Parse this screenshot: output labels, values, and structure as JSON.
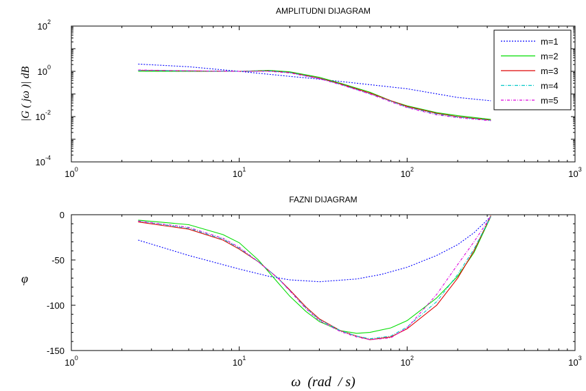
{
  "chart_data": [
    {
      "type": "line",
      "title": "AMPLITUDNI DIJAGRAM",
      "ylabel": "|G ( jω )| dB",
      "xlabel": "",
      "xscale": "log",
      "yscale": "log",
      "xlim": [
        1,
        1000
      ],
      "ylim": [
        0.0001,
        100
      ],
      "x_ticks": [
        {
          "base": "10",
          "exp": "0",
          "value": 1
        },
        {
          "base": "10",
          "exp": "1",
          "value": 10
        },
        {
          "base": "10",
          "exp": "2",
          "value": 100
        },
        {
          "base": "10",
          "exp": "3",
          "value": 1000
        }
      ],
      "y_ticks": [
        {
          "base": "10",
          "exp": "2",
          "value": 100
        },
        {
          "base": "10",
          "exp": "0",
          "value": 1
        },
        {
          "base": "10",
          "exp": "-2",
          "value": 0.01
        },
        {
          "base": "10",
          "exp": "-4",
          "value": 0.0001
        }
      ],
      "legend_position": "top-right",
      "series": [
        {
          "name": "m=1",
          "color": "#0000ff",
          "dash": "2,2",
          "points": [
            [
              2.5,
              2.1
            ],
            [
              5,
              1.6
            ],
            [
              10,
              1.0
            ],
            [
              20,
              0.6
            ],
            [
              30,
              0.45
            ],
            [
              50,
              0.3
            ],
            [
              100,
              0.17
            ],
            [
              200,
              0.07
            ],
            [
              315,
              0.05
            ]
          ]
        },
        {
          "name": "m=2",
          "color": "#00dd00",
          "dash": "",
          "points": [
            [
              2.5,
              1.0
            ],
            [
              5,
              1.0
            ],
            [
              10,
              1.0
            ],
            [
              15,
              1.1
            ],
            [
              20,
              0.95
            ],
            [
              30,
              0.55
            ],
            [
              40,
              0.3
            ],
            [
              60,
              0.12
            ],
            [
              80,
              0.05
            ],
            [
              100,
              0.03
            ],
            [
              150,
              0.015
            ],
            [
              200,
              0.011
            ],
            [
              315,
              0.0075
            ]
          ]
        },
        {
          "name": "m=3",
          "color": "#dd0000",
          "dash": "",
          "points": [
            [
              2.5,
              1.1
            ],
            [
              5,
              1.05
            ],
            [
              10,
              1.0
            ],
            [
              15,
              1.05
            ],
            [
              20,
              0.9
            ],
            [
              30,
              0.5
            ],
            [
              40,
              0.28
            ],
            [
              60,
              0.11
            ],
            [
              80,
              0.05
            ],
            [
              100,
              0.028
            ],
            [
              150,
              0.014
            ],
            [
              200,
              0.01
            ],
            [
              315,
              0.007
            ]
          ]
        },
        {
          "name": "m=4",
          "color": "#00c8c8",
          "dash": "5,2,1,2",
          "points": [
            [
              2.5,
              1.1
            ],
            [
              5,
              1.05
            ],
            [
              10,
              1.0
            ],
            [
              15,
              1.05
            ],
            [
              20,
              0.88
            ],
            [
              30,
              0.48
            ],
            [
              40,
              0.27
            ],
            [
              60,
              0.1
            ],
            [
              80,
              0.048
            ],
            [
              100,
              0.026
            ],
            [
              150,
              0.013
            ],
            [
              200,
              0.0095
            ],
            [
              315,
              0.0068
            ]
          ]
        },
        {
          "name": "m=5",
          "color": "#dd00dd",
          "dash": "4,2,1,2",
          "points": [
            [
              2.5,
              1.15
            ],
            [
              5,
              1.05
            ],
            [
              10,
              1.0
            ],
            [
              15,
              1.0
            ],
            [
              20,
              0.85
            ],
            [
              30,
              0.47
            ],
            [
              40,
              0.26
            ],
            [
              60,
              0.1
            ],
            [
              80,
              0.045
            ],
            [
              100,
              0.025
            ],
            [
              150,
              0.012
            ],
            [
              200,
              0.009
            ],
            [
              315,
              0.0066
            ]
          ]
        }
      ]
    },
    {
      "type": "line",
      "title": "FAZNI DIJAGRAM",
      "ylabel": "φ",
      "xlabel": "ω  (rad  / s)",
      "xscale": "log",
      "yscale": "linear",
      "xlim": [
        1,
        1000
      ],
      "ylim": [
        -150,
        0
      ],
      "x_ticks": [
        {
          "base": "10",
          "exp": "0",
          "value": 1
        },
        {
          "base": "10",
          "exp": "1",
          "value": 10
        },
        {
          "base": "10",
          "exp": "2",
          "value": 100
        },
        {
          "base": "10",
          "exp": "3",
          "value": 1000
        }
      ],
      "y_ticks": [
        {
          "label": "0",
          "value": 0
        },
        {
          "label": "-50",
          "value": -50
        },
        {
          "label": "-100",
          "value": -100
        },
        {
          "label": "-150",
          "value": -150
        }
      ],
      "series": [
        {
          "name": "m=1",
          "color": "#0000ff",
          "dash": "2,2",
          "points": [
            [
              2.5,
              -28
            ],
            [
              5,
              -45
            ],
            [
              10,
              -60
            ],
            [
              15,
              -68
            ],
            [
              20,
              -72
            ],
            [
              30,
              -74
            ],
            [
              50,
              -71
            ],
            [
              70,
              -66
            ],
            [
              100,
              -58
            ],
            [
              150,
              -45
            ],
            [
              200,
              -33
            ],
            [
              250,
              -20
            ],
            [
              315,
              -2
            ]
          ]
        },
        {
          "name": "m=2",
          "color": "#00dd00",
          "dash": "",
          "points": [
            [
              2.5,
              -6
            ],
            [
              5,
              -11
            ],
            [
              8,
              -22
            ],
            [
              10,
              -31
            ],
            [
              13,
              -50
            ],
            [
              17,
              -75
            ],
            [
              20,
              -90
            ],
            [
              25,
              -107
            ],
            [
              30,
              -118
            ],
            [
              40,
              -128
            ],
            [
              50,
              -131
            ],
            [
              60,
              -130
            ],
            [
              80,
              -125
            ],
            [
              100,
              -117
            ],
            [
              150,
              -92
            ],
            [
              200,
              -68
            ],
            [
              250,
              -42
            ],
            [
              315,
              -2
            ]
          ]
        },
        {
          "name": "m=3",
          "color": "#dd0000",
          "dash": "",
          "points": [
            [
              2.5,
              -8
            ],
            [
              5,
              -16
            ],
            [
              8,
              -28
            ],
            [
              10,
              -38
            ],
            [
              13,
              -52
            ],
            [
              17,
              -70
            ],
            [
              20,
              -83
            ],
            [
              25,
              -102
            ],
            [
              30,
              -115
            ],
            [
              40,
              -128
            ],
            [
              50,
              -134
            ],
            [
              60,
              -138
            ],
            [
              80,
              -135
            ],
            [
              100,
              -126
            ],
            [
              150,
              -100
            ],
            [
              200,
              -70
            ],
            [
              250,
              -40
            ],
            [
              315,
              -1
            ]
          ]
        },
        {
          "name": "m=4",
          "color": "#00c8c8",
          "dash": "5,2,1,2",
          "points": [
            [
              2.5,
              -7
            ],
            [
              5,
              -15
            ],
            [
              8,
              -27
            ],
            [
              10,
              -37
            ],
            [
              13,
              -52
            ],
            [
              17,
              -70
            ],
            [
              20,
              -84
            ],
            [
              25,
              -103
            ],
            [
              30,
              -116
            ],
            [
              40,
              -128
            ],
            [
              50,
              -134
            ],
            [
              60,
              -137
            ],
            [
              80,
              -134
            ],
            [
              100,
              -124
            ],
            [
              150,
              -96
            ],
            [
              200,
              -66
            ],
            [
              250,
              -38
            ],
            [
              315,
              -2
            ]
          ]
        },
        {
          "name": "m=5",
          "color": "#dd00dd",
          "dash": "4,2,1,2",
          "points": [
            [
              2.5,
              -7
            ],
            [
              5,
              -14
            ],
            [
              8,
              -26
            ],
            [
              10,
              -36
            ],
            [
              13,
              -52
            ],
            [
              17,
              -70
            ],
            [
              20,
              -84
            ],
            [
              25,
              -104
            ],
            [
              30,
              -117
            ],
            [
              40,
              -129
            ],
            [
              50,
              -135
            ],
            [
              60,
              -138
            ],
            [
              80,
              -136
            ],
            [
              100,
              -125
            ],
            [
              150,
              -88
            ],
            [
              200,
              -55
            ],
            [
              250,
              -30
            ],
            [
              315,
              -2
            ]
          ]
        }
      ]
    }
  ]
}
